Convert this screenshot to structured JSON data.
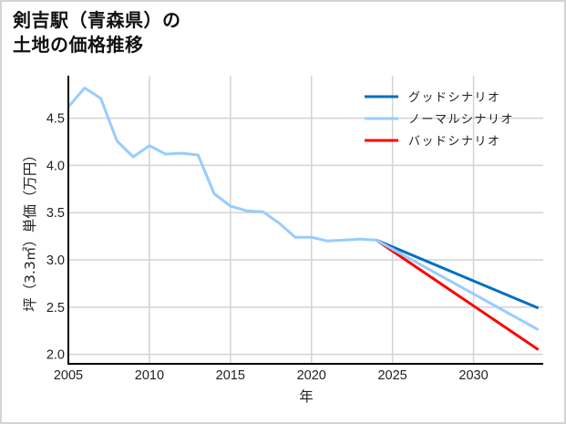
{
  "title": {
    "line1": "剣吉駅（青森県）の",
    "line2": "土地の価格推移"
  },
  "chart_data": {
    "type": "line",
    "title": "剣吉駅（青森県）の土地の価格推移",
    "xlabel": "年",
    "ylabel": "坪（3.3㎡）単価（万円）",
    "xlim": [
      2005,
      2034.3
    ],
    "ylim": [
      1.9,
      4.95
    ],
    "grid": true,
    "legend_position": "upper right",
    "x_ticks": [
      "2005",
      "2010",
      "2015",
      "2020",
      "2025",
      "2030"
    ],
    "y_ticks": [
      "2.0",
      "2.5",
      "3.0",
      "3.5",
      "4.0",
      "4.5"
    ],
    "series": [
      {
        "name": "グッドシナリオ",
        "color": "#0070c0",
        "x": [
          2024,
          2034
        ],
        "values": [
          3.21,
          2.49
        ]
      },
      {
        "name": "ノーマルシナリオ",
        "color": "#99ccff",
        "x": [
          2005,
          2006,
          2007,
          2008,
          2009,
          2010,
          2011,
          2012,
          2013,
          2014,
          2015,
          2016,
          2017,
          2018,
          2019,
          2020,
          2021,
          2022,
          2023,
          2024,
          2034
        ],
        "values": [
          4.62,
          4.82,
          4.71,
          4.26,
          4.09,
          4.21,
          4.12,
          4.13,
          4.11,
          3.7,
          3.57,
          3.52,
          3.51,
          3.39,
          3.24,
          3.24,
          3.2,
          3.21,
          3.22,
          3.21,
          2.26
        ]
      },
      {
        "name": "バッドシナリオ",
        "color": "#ff0000",
        "x": [
          2024,
          2034
        ],
        "values": [
          3.21,
          2.05
        ]
      }
    ]
  },
  "colors": {
    "grid": "#d3d3d3",
    "axis": "#000000",
    "border": "#d4d4d4"
  }
}
